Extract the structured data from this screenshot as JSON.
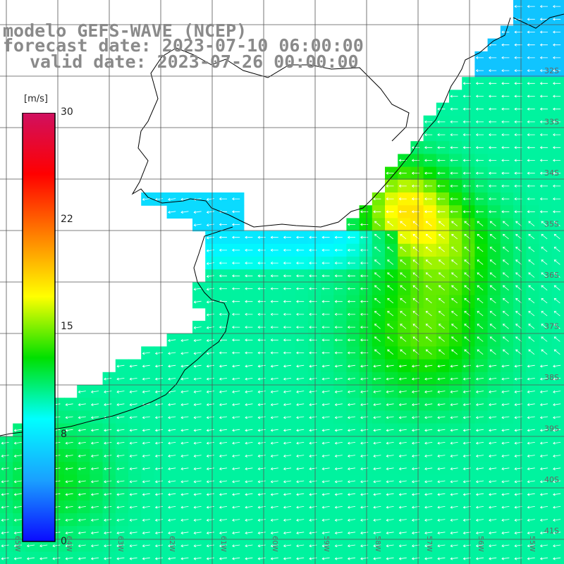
{
  "title": {
    "line1": "modelo GEFS-WAVE (NCEP)",
    "line2": "forecast date: 2023-07-10 06:00:00",
    "line3": "valid date: 2023-07-26 00:00:00"
  },
  "colorbar": {
    "unit": "[m/s]",
    "ticks": [
      "30",
      "22",
      "15",
      "8",
      "0"
    ],
    "tick_values": [
      30,
      22,
      15,
      8,
      0
    ],
    "min": 0,
    "max": 30,
    "colors": [
      "#0a0aff",
      "#1aa0ff",
      "#00ffff",
      "#00e000",
      "#ffff00",
      "#ff8000",
      "#ff0000",
      "#d01060"
    ]
  },
  "lat_labels": [
    "32S",
    "33S",
    "34S",
    "35S",
    "36S",
    "37S",
    "38S",
    "39S",
    "40S",
    "41S"
  ],
  "lon_labels": [
    "65W",
    "64W",
    "63W",
    "62W",
    "61W",
    "60W",
    "59W",
    "58W",
    "57W",
    "56W",
    "55W"
  ],
  "colors": {
    "land": "#ffffff",
    "coast": "#000000",
    "grid": "#555555",
    "arrow": "#ffffff",
    "title": "#8a8a8a"
  }
}
